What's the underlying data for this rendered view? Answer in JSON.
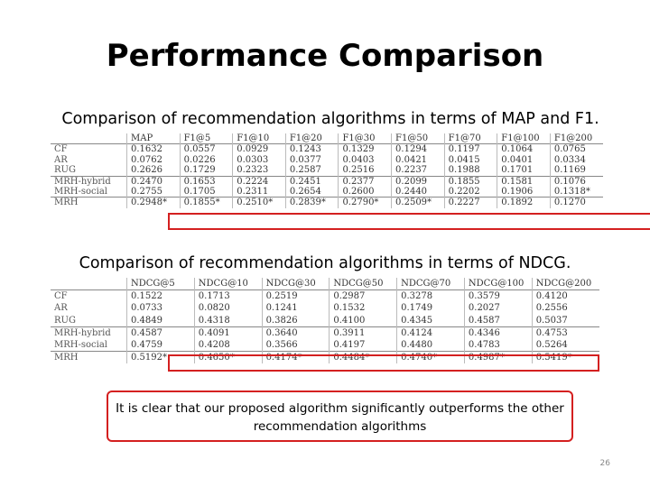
{
  "title": "Performance Comparison",
  "table1": {
    "caption": "Comparison of recommendation algorithms in terms of MAP and F1.",
    "headers": [
      "",
      "MAP",
      "F1@5",
      "F1@10",
      "F1@20",
      "F1@30",
      "F1@50",
      "F1@70",
      "F1@100",
      "F1@200"
    ],
    "rows": [
      [
        "CF",
        "0.1632",
        "0.0557",
        "0.0929",
        "0.1243",
        "0.1329",
        "0.1294",
        "0.1197",
        "0.1064",
        "0.0765"
      ],
      [
        "AR",
        "0.0762",
        "0.0226",
        "0.0303",
        "0.0377",
        "0.0403",
        "0.0421",
        "0.0415",
        "0.0401",
        "0.0334"
      ],
      [
        "RUG",
        "0.2626",
        "0.1729",
        "0.2323",
        "0.2587",
        "0.2516",
        "0.2237",
        "0.1988",
        "0.1701",
        "0.1169"
      ],
      [
        "MRH-hybrid",
        "0.2470",
        "0.1653",
        "0.2224",
        "0.2451",
        "0.2377",
        "0.2099",
        "0.1855",
        "0.1581",
        "0.1076"
      ],
      [
        "MRH-social",
        "0.2755",
        "0.1705",
        "0.2311",
        "0.2654",
        "0.2600",
        "0.2440",
        "0.2202",
        "0.1906",
        "0.1318*"
      ],
      [
        "MRH",
        "0.2948*",
        "0.1855*",
        "0.2510*",
        "0.2839*",
        "0.2790*",
        "0.2509*",
        "0.2227",
        "0.1892",
        "0.1270"
      ]
    ]
  },
  "table2": {
    "caption": "Comparison of recommendation algorithms in terms of NDCG.",
    "headers": [
      "",
      "NDCG@5",
      "NDCG@10",
      "NDCG@30",
      "NDCG@50",
      "NDCG@70",
      "NDCG@100",
      "NDCG@200"
    ],
    "rows": [
      [
        "CF",
        "0.1522",
        "0.1713",
        "0.2519",
        "0.2987",
        "0.3278",
        "0.3579",
        "0.4120"
      ],
      [
        "AR",
        "0.0733",
        "0.0820",
        "0.1241",
        "0.1532",
        "0.1749",
        "0.2027",
        "0.2556"
      ],
      [
        "RUG",
        "0.4849",
        "0.4318",
        "0.3826",
        "0.4100",
        "0.4345",
        "0.4587",
        "0.5037"
      ],
      [
        "MRH-hybrid",
        "0.4587",
        "0.4091",
        "0.3640",
        "0.3911",
        "0.4124",
        "0.4346",
        "0.4753"
      ],
      [
        "MRH-social",
        "0.4759",
        "0.4208",
        "0.3566",
        "0.4197",
        "0.4480",
        "0.4783",
        "0.5264"
      ],
      [
        "MRH",
        "0.5192*",
        "0.4650*",
        "0.4174*",
        "0.4484*",
        "0.4740*",
        "0.4987*",
        "0.5419*"
      ]
    ]
  },
  "callout": "It is clear that our proposed algorithm significantly outperforms the other recommendation algorithms",
  "page_number": "26",
  "colors": {
    "highlight": "#d42020"
  }
}
